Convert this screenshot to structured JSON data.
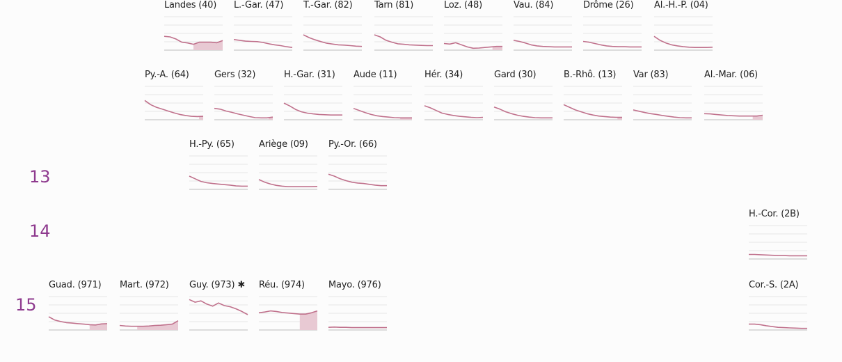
{
  "colors": {
    "line": "#c0718c",
    "shade": "#e8c9d3",
    "grid": "#e6e6e6",
    "axis": "#bdbdbd",
    "row_label": "#8e3a8e"
  },
  "row_labels": [
    "13",
    "14",
    "15"
  ],
  "chart_data": [
    {
      "type": "line",
      "label": "Landes (40)",
      "shade": [
        0.5,
        1
      ],
      "values": [
        0.52,
        0.5,
        0.42,
        0.3,
        0.27,
        0.22,
        0.3,
        0.3,
        0.3,
        0.28,
        0.36
      ]
    },
    {
      "type": "line",
      "label": "L.-Gar. (47)",
      "values": [
        0.4,
        0.37,
        0.34,
        0.33,
        0.32,
        0.29,
        0.24,
        0.2,
        0.17,
        0.13,
        0.1
      ]
    },
    {
      "type": "line",
      "label": "T.-Gar. (82)",
      "values": [
        0.58,
        0.47,
        0.39,
        0.32,
        0.26,
        0.23,
        0.2,
        0.19,
        0.17,
        0.15,
        0.14
      ]
    },
    {
      "type": "line",
      "label": "Tarn (81)",
      "values": [
        0.58,
        0.5,
        0.37,
        0.3,
        0.24,
        0.22,
        0.2,
        0.19,
        0.18,
        0.17,
        0.17
      ]
    },
    {
      "type": "line",
      "label": "Loz. (48)",
      "shade": [
        0.83,
        1
      ],
      "values": [
        0.25,
        0.23,
        0.28,
        0.2,
        0.12,
        0.07,
        0.08,
        0.1,
        0.12,
        0.14,
        0.14
      ]
    },
    {
      "type": "line",
      "label": "Vau. (84)",
      "values": [
        0.37,
        0.33,
        0.27,
        0.2,
        0.16,
        0.14,
        0.13,
        0.12,
        0.12,
        0.12,
        0.12
      ]
    },
    {
      "type": "line",
      "label": "Drôme (26)",
      "values": [
        0.33,
        0.3,
        0.25,
        0.2,
        0.16,
        0.14,
        0.13,
        0.13,
        0.12,
        0.12,
        0.12
      ]
    },
    {
      "type": "line",
      "label": "Al.-H.-P. (04)",
      "values": [
        0.52,
        0.37,
        0.27,
        0.2,
        0.16,
        0.13,
        0.11,
        0.1,
        0.1,
        0.1,
        0.11
      ]
    },
    {
      "type": "line",
      "label": "Py.-A. (64)",
      "shade": [
        0.93,
        1
      ],
      "values": [
        0.73,
        0.57,
        0.47,
        0.4,
        0.33,
        0.26,
        0.2,
        0.16,
        0.13,
        0.12,
        0.13
      ]
    },
    {
      "type": "line",
      "label": "Gers (32)",
      "shade": [
        0.93,
        1
      ],
      "values": [
        0.43,
        0.4,
        0.33,
        0.28,
        0.22,
        0.17,
        0.12,
        0.08,
        0.07,
        0.07,
        0.1
      ]
    },
    {
      "type": "line",
      "label": "H.-Gar. (31)",
      "values": [
        0.63,
        0.52,
        0.39,
        0.3,
        0.25,
        0.22,
        0.2,
        0.19,
        0.18,
        0.18,
        0.18
      ]
    },
    {
      "type": "line",
      "label": "Aude (11)",
      "shade": [
        0.8,
        1
      ],
      "values": [
        0.43,
        0.35,
        0.27,
        0.2,
        0.15,
        0.12,
        0.1,
        0.08,
        0.07,
        0.07,
        0.07
      ]
    },
    {
      "type": "line",
      "label": "Hér. (34)",
      "values": [
        0.53,
        0.45,
        0.35,
        0.25,
        0.2,
        0.16,
        0.13,
        0.11,
        0.09,
        0.08,
        0.09
      ]
    },
    {
      "type": "line",
      "label": "Gard (30)",
      "values": [
        0.48,
        0.4,
        0.3,
        0.23,
        0.17,
        0.13,
        0.1,
        0.08,
        0.07,
        0.07,
        0.07
      ]
    },
    {
      "type": "line",
      "label": "B.-Rhô. (13)",
      "shade": [
        0.92,
        1
      ],
      "values": [
        0.57,
        0.47,
        0.37,
        0.3,
        0.23,
        0.18,
        0.14,
        0.12,
        0.1,
        0.09,
        0.09
      ]
    },
    {
      "type": "line",
      "label": "Var (83)",
      "values": [
        0.37,
        0.32,
        0.27,
        0.23,
        0.2,
        0.16,
        0.13,
        0.1,
        0.08,
        0.07,
        0.07
      ]
    },
    {
      "type": "line",
      "label": "Al.-Mar. (06)",
      "shade": [
        0.83,
        1
      ],
      "values": [
        0.23,
        0.22,
        0.2,
        0.18,
        0.16,
        0.15,
        0.14,
        0.14,
        0.14,
        0.14,
        0.17
      ]
    },
    {
      "type": "line",
      "label": "H.-Py. (65)",
      "values": [
        0.5,
        0.4,
        0.3,
        0.25,
        0.22,
        0.2,
        0.18,
        0.16,
        0.13,
        0.12,
        0.12
      ]
    },
    {
      "type": "line",
      "label": "Ariège (09)",
      "values": [
        0.37,
        0.27,
        0.2,
        0.15,
        0.12,
        0.1,
        0.1,
        0.1,
        0.1,
        0.1,
        0.11
      ]
    },
    {
      "type": "line",
      "label": "Py.-Or. (66)",
      "values": [
        0.57,
        0.5,
        0.4,
        0.33,
        0.27,
        0.24,
        0.22,
        0.19,
        0.16,
        0.14,
        0.14
      ]
    },
    {
      "type": "line",
      "label": "H.-Cor. (2B)",
      "values": [
        0.17,
        0.17,
        0.16,
        0.15,
        0.14,
        0.13,
        0.13,
        0.12,
        0.12,
        0.12,
        0.12
      ]
    },
    {
      "type": "line",
      "label": "Guad. (971)",
      "shade": [
        0.7,
        1
      ],
      "values": [
        0.5,
        0.38,
        0.32,
        0.28,
        0.26,
        0.24,
        0.22,
        0.2,
        0.19,
        0.23,
        0.24
      ]
    },
    {
      "type": "line",
      "label": "Mart. (972)",
      "shade": [
        0.3,
        1
      ],
      "values": [
        0.17,
        0.15,
        0.14,
        0.14,
        0.14,
        0.15,
        0.17,
        0.18,
        0.2,
        0.22,
        0.35
      ]
    },
    {
      "type": "line",
      "label": "Guy. (973)",
      "mark": "✱",
      "values": [
        1.15,
        1.05,
        1.1,
        0.98,
        0.9,
        1.02,
        0.92,
        0.88,
        0.8,
        0.7,
        0.58
      ]
    },
    {
      "type": "line",
      "label": "Réu. (974)",
      "shade": [
        0.7,
        1
      ],
      "values": [
        0.65,
        0.68,
        0.72,
        0.7,
        0.66,
        0.64,
        0.62,
        0.6,
        0.6,
        0.65,
        0.72
      ]
    },
    {
      "type": "line",
      "label": "Mayo. (976)",
      "values": [
        0.1,
        0.11,
        0.1,
        0.1,
        0.09,
        0.09,
        0.09,
        0.09,
        0.09,
        0.09,
        0.09
      ]
    },
    {
      "type": "line",
      "label": "Cor.-S. (2A)",
      "values": [
        0.22,
        0.22,
        0.2,
        0.16,
        0.13,
        0.1,
        0.09,
        0.08,
        0.07,
        0.06,
        0.06
      ]
    }
  ]
}
